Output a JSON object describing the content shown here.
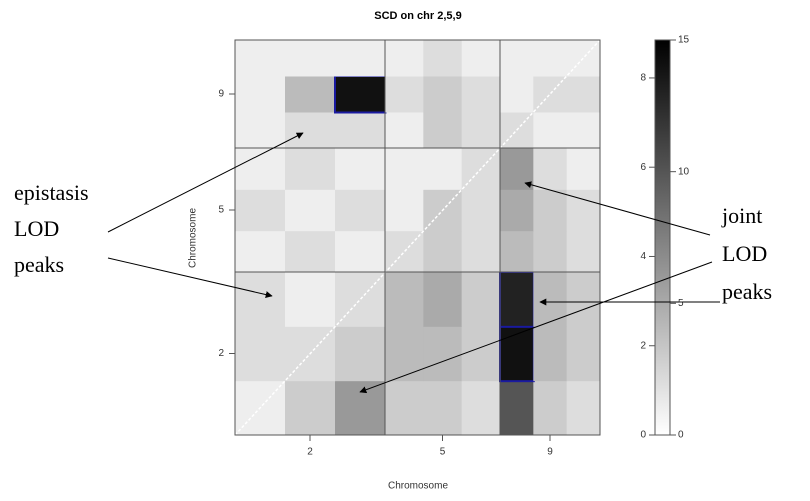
{
  "chart_data": {
    "type": "heatmap",
    "title": "SCD on chr 2,5,9",
    "x_label": "Chromosome",
    "y_label": "Chromosome",
    "x_categories": [
      "2",
      "5",
      "9"
    ],
    "y_categories": [
      "2",
      "5",
      "9"
    ],
    "values": [
      [
        1,
        3,
        6,
        3,
        3,
        2,
        10,
        3,
        2
      ],
      [
        2,
        2,
        3,
        4,
        4,
        3,
        14,
        4,
        3
      ],
      [
        2,
        1,
        2,
        4,
        5,
        3,
        13,
        4,
        3
      ],
      [
        1,
        2,
        1,
        2,
        3,
        2,
        4,
        3,
        2
      ],
      [
        2,
        1,
        2,
        1,
        3,
        2,
        5,
        3,
        2
      ],
      [
        1,
        2,
        1,
        1,
        1,
        2,
        6,
        2,
        1
      ],
      [
        1,
        2,
        2,
        1,
        3,
        2,
        2,
        1,
        1
      ],
      [
        1,
        4,
        14,
        2,
        3,
        2,
        1,
        2,
        2
      ],
      [
        1,
        1,
        1,
        1,
        2,
        1,
        1,
        1,
        1
      ]
    ],
    "colorbar": {
      "ylim": [
        0,
        15
      ],
      "yticks": [
        0,
        5,
        10,
        15
      ],
      "y2lim": [
        0,
        8.85
      ],
      "y2ticks": [
        0,
        2,
        4,
        6,
        8
      ]
    },
    "annotations": {
      "epistasis": [
        "epistasis",
        "LOD",
        "peaks"
      ],
      "joint": [
        "joint",
        "LOD",
        "peaks"
      ]
    }
  }
}
